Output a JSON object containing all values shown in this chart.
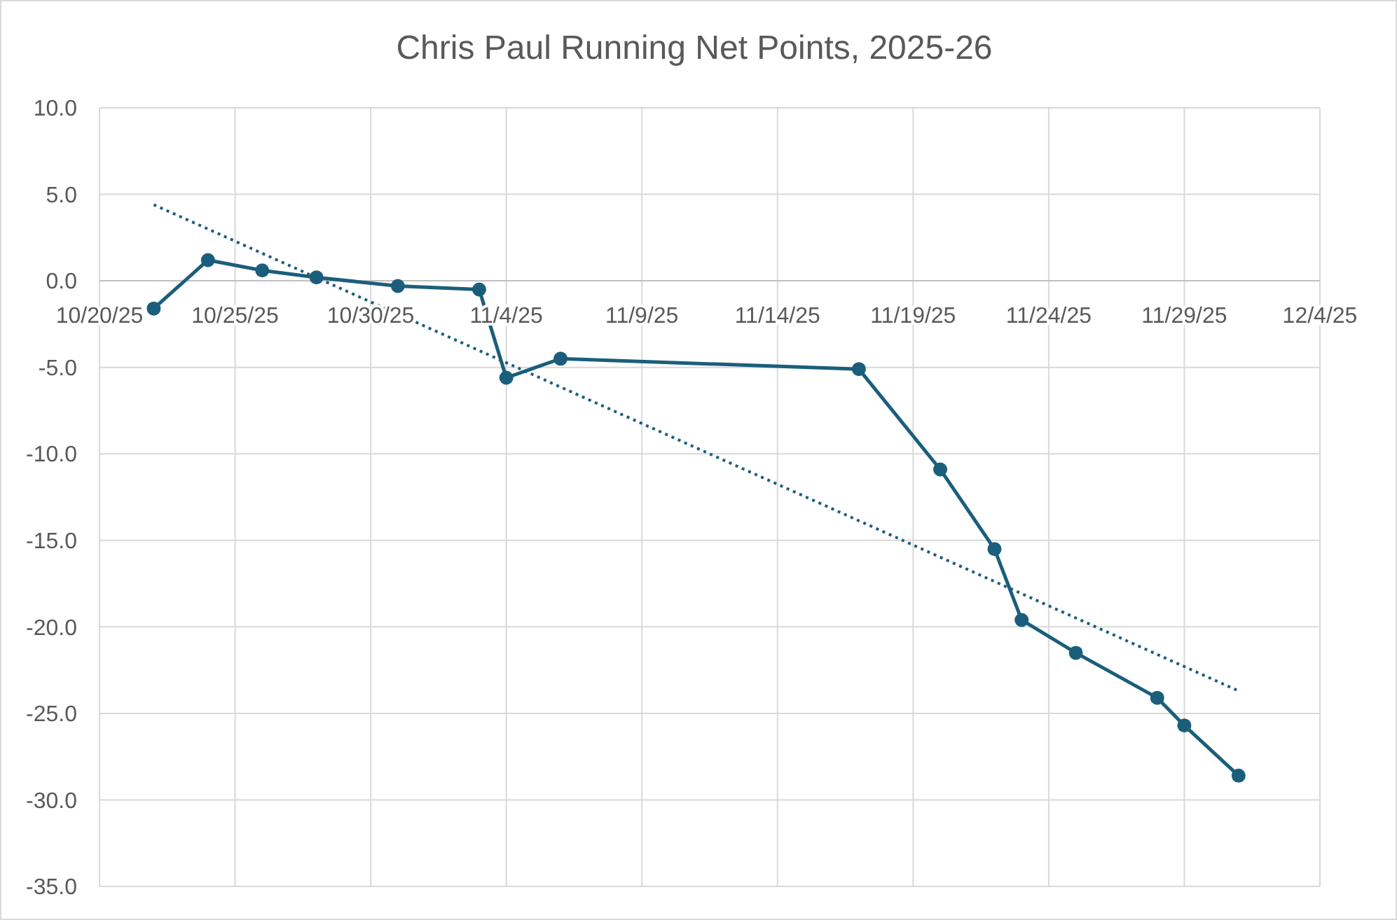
{
  "chart_data": {
    "type": "line",
    "title": "Chris Paul Running Net Points, 2025-26",
    "series": [
      {
        "color": "#1b5e7b",
        "marker": "circle",
        "line_style": "solid",
        "x": [
          "2025-10-22",
          "2025-10-24",
          "2025-10-26",
          "2025-10-28",
          "2025-10-31",
          "2025-11-03",
          "2025-11-04",
          "2025-11-06",
          "2025-11-17",
          "2025-11-20",
          "2025-11-22",
          "2025-11-23",
          "2025-11-25",
          "2025-11-28",
          "2025-11-29",
          "2025-12-01"
        ],
        "values": [
          -1.6,
          1.2,
          0.6,
          0.2,
          -0.3,
          -0.5,
          -5.6,
          -4.5,
          -5.1,
          -10.9,
          -15.5,
          -19.6,
          -21.5,
          -24.1,
          -25.7,
          -28.6
        ]
      },
      {
        "color": "#1b5e7b",
        "marker": "none",
        "line_style": "dotted",
        "x": [
          "2025-10-22",
          "2025-12-01"
        ],
        "values": [
          4.4,
          -23.7
        ]
      }
    ],
    "xlim": [
      "2025-10-20",
      "2025-12-04"
    ],
    "xticks": [
      {
        "value": "2025-10-20",
        "label": "10/20/25"
      },
      {
        "value": "2025-10-25",
        "label": "10/25/25"
      },
      {
        "value": "2025-10-30",
        "label": "10/30/25"
      },
      {
        "value": "2025-11-04",
        "label": "11/4/25"
      },
      {
        "value": "2025-11-09",
        "label": "11/9/25"
      },
      {
        "value": "2025-11-14",
        "label": "11/14/25"
      },
      {
        "value": "2025-11-19",
        "label": "11/19/25"
      },
      {
        "value": "2025-11-24",
        "label": "11/24/25"
      },
      {
        "value": "2025-11-29",
        "label": "11/29/25"
      },
      {
        "value": "2025-12-04",
        "label": "12/4/25"
      }
    ],
    "ylim": [
      -35,
      10
    ],
    "yticks": [
      {
        "value": 10,
        "label": "10.0"
      },
      {
        "value": 5,
        "label": "5.0"
      },
      {
        "value": 0,
        "label": "0.0"
      },
      {
        "value": -5,
        "label": "-5.0"
      },
      {
        "value": -10,
        "label": "-10.0"
      },
      {
        "value": -15,
        "label": "-15.0"
      },
      {
        "value": -20,
        "label": "-20.0"
      },
      {
        "value": -25,
        "label": "-25.0"
      },
      {
        "value": -30,
        "label": "-30.0"
      },
      {
        "value": -35,
        "label": "-35.0"
      }
    ],
    "grid": true
  }
}
